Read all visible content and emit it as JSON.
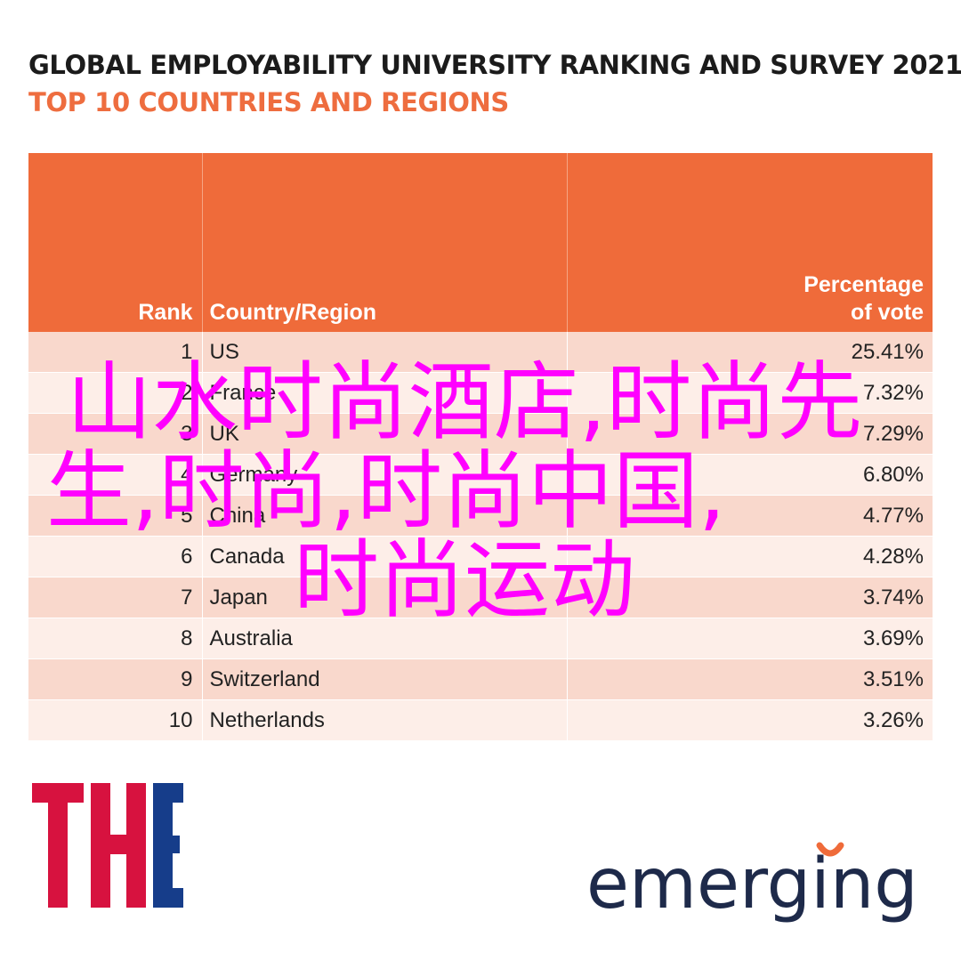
{
  "chart_data": {
    "type": "table",
    "title": "GLOBAL EMPLOYABILITY UNIVERSITY RANKING AND SURVEY 2021",
    "subtitle": "TOP 10 COUNTRIES AND REGIONS",
    "columns": [
      "Rank",
      "Country/Region",
      "Percentage of vote"
    ],
    "rows": [
      {
        "rank": "1",
        "country": "US",
        "percentage": "25.41%"
      },
      {
        "rank": "2",
        "country": "France",
        "percentage": "7.32%"
      },
      {
        "rank": "3",
        "country": "UK",
        "percentage": "7.29%"
      },
      {
        "rank": "4",
        "country": "Germany",
        "percentage": "6.80%"
      },
      {
        "rank": "5",
        "country": "China",
        "percentage": "4.77%"
      },
      {
        "rank": "6",
        "country": "Canada",
        "percentage": "4.28%"
      },
      {
        "rank": "7",
        "country": "Japan",
        "percentage": "3.74%"
      },
      {
        "rank": "8",
        "country": "Australia",
        "percentage": "3.69%"
      },
      {
        "rank": "9",
        "country": "Switzerland",
        "percentage": "3.51%"
      },
      {
        "rank": "10",
        "country": "Netherlands",
        "percentage": "3.26%"
      }
    ]
  },
  "watermark": {
    "line1": "山水时尚酒店,时尚先",
    "line2": "生,时尚,时尚中国,",
    "line3": "时尚运动"
  },
  "logos": {
    "the_text": "THE",
    "the_color": "#d7123f",
    "the_blue": "#163d8a",
    "emerging_text": "emerging",
    "emerging_color": "#1e2a4a",
    "emerging_accent": "#ef6b3a"
  },
  "colors": {
    "header_bg": "#ef6b3a",
    "row_odd": "#f9d8cc",
    "row_even": "#fdeee8",
    "subtitle": "#ee6d3f",
    "watermark": "#ff00ff"
  }
}
